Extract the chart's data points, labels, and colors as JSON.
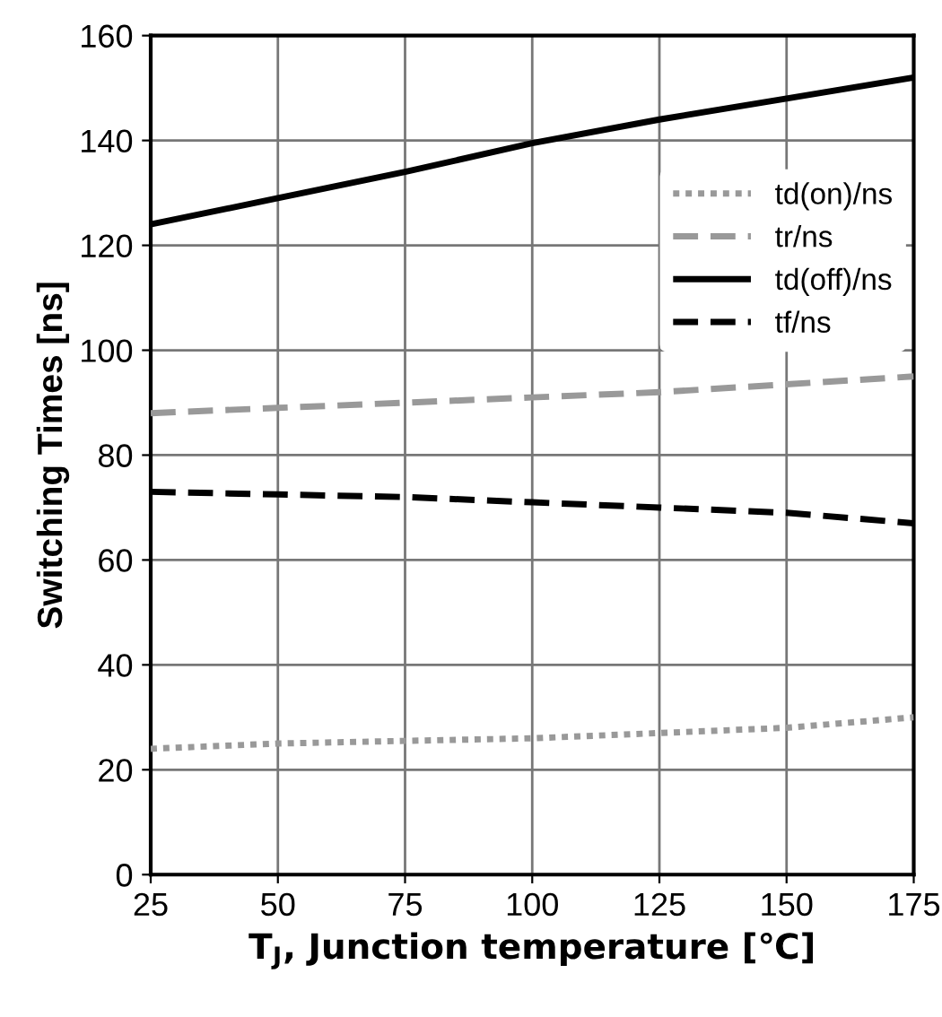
{
  "chart_data": {
    "type": "line",
    "xlabel": "T$_{J}$, Junction temperature [℃]",
    "ylabel": "Switching Times [ns]",
    "x": [
      25,
      50,
      75,
      100,
      125,
      150,
      175
    ],
    "series": [
      {
        "name": "td(on)/ns",
        "color": "#999999",
        "line_style": "dotted",
        "values": [
          24,
          25,
          25.5,
          26,
          27,
          28,
          30
        ]
      },
      {
        "name": "tr/ns",
        "color": "#999999",
        "line_style": "dashed",
        "values": [
          88,
          89,
          90,
          91,
          92,
          93.5,
          95
        ]
      },
      {
        "name": "td(off)/ns",
        "color": "#000000",
        "line_style": "solid",
        "values": [
          124,
          129,
          134,
          139.5,
          144,
          148,
          152
        ]
      },
      {
        "name": "tf/ns",
        "color": "#000000",
        "line_style": "dashed",
        "values": [
          73,
          72.5,
          72,
          71,
          70,
          69,
          67
        ]
      }
    ],
    "xlim": [
      25,
      175
    ],
    "ylim": [
      0,
      160
    ],
    "xticks": [
      25,
      50,
      75,
      100,
      125,
      150,
      175
    ],
    "yticks": [
      0,
      20,
      40,
      60,
      80,
      100,
      120,
      140,
      160
    ],
    "grid": true,
    "legend": "top right",
    "marker": "none"
  }
}
